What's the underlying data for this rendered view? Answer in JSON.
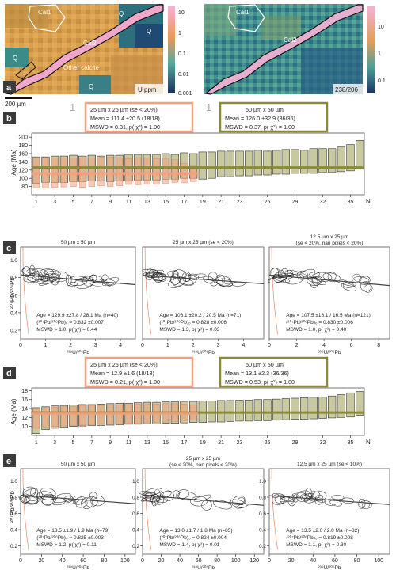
{
  "colors": {
    "salmon": "#f2a07e",
    "olive": "#8a8a3a",
    "bar_fill": "#c9c9a0",
    "panel_label_bg": "#3b3b3b",
    "map_pink": "#f1a7c9",
    "map_orange": "#d99a4a",
    "map_teal": "#2d7a82",
    "map_navy": "#1f3a6a"
  },
  "panel_a": {
    "label": "a",
    "map1": {
      "labels": [
        "Cal1",
        "Cal2",
        "Q",
        "Q",
        "Q",
        "Q",
        "Other calcite"
      ],
      "unit": "U ppm",
      "colorbar_ticks": [
        "10",
        "1",
        "0.1",
        "0.01",
        "0.001"
      ]
    },
    "map2": {
      "labels": [
        "Cal1",
        "Cal2"
      ],
      "unit": "238/206",
      "colorbar_ticks": [
        "10",
        "1",
        "0.1"
      ]
    },
    "scalebar": "200 µm"
  },
  "panel_b": {
    "label": "b",
    "ylabel": "Age (Ma)",
    "xlabel": "N",
    "y_ticks": [
      "80",
      "100",
      "120",
      "140",
      "160",
      "180",
      "200"
    ],
    "x_ticks": [
      "1",
      "3",
      "5",
      "7",
      "9",
      "11",
      "13",
      "15",
      "17",
      "19",
      "21",
      "23",
      "26",
      "29",
      "32",
      "35"
    ],
    "marker1": "1",
    "marker2": "1",
    "box1": {
      "title": "25 µm x 25 µm  (se < 20%)",
      "line1": "Mean = 111.4  ±20.5 (18/18)",
      "line2": "MSWD = 0.31, p(  χ²) = 1.00"
    },
    "box2": {
      "title": "50 µm x 50 µm",
      "line1": "Mean = 126.0  ±32.9 (36/36)",
      "line2": "MSWD = 0.37, p(  χ²) = 1.00"
    }
  },
  "panel_c": {
    "label": "c",
    "ylabel": "²⁰⁷Pb/²⁰⁶Pb",
    "plots": [
      {
        "title": "50 µm x 50 µm",
        "title2": "",
        "xlabel": "²³⁸U/²⁰⁶Pb",
        "x_ticks": [
          "0",
          "1",
          "2",
          "3",
          "4"
        ],
        "y_ticks": [
          "0.2",
          "0.4",
          "0.6",
          "0.8",
          "1.0"
        ],
        "s1": "Age = 129.9  ±27.8 / 28.1 Ma (n=40)",
        "s2": "(²⁰⁷Pb/²⁰⁶Pb)₀ = 0.832 ±0.007",
        "s3": "MSWD = 1.0, p(  χ²) = 0.44"
      },
      {
        "title": "25 µm x 25 µm (se < 20%)",
        "title2": "",
        "xlabel": "²³⁸U/²⁰⁶Pb",
        "x_ticks": [
          "0",
          "1",
          "2",
          "3",
          "4"
        ],
        "y_ticks": [],
        "s1": "Age = 106.1  ±20.2 / 20.5 Ma (n=71)",
        "s2": "(²⁰⁷Pb/²⁰⁶Pb)₀ = 0.828 ±0.006",
        "s3": "MSWD = 1.3, p(  χ²) = 0.03"
      },
      {
        "title": "12.5 µm x 25 µm",
        "title2": "(se < 20%, nan pixels < 20%)",
        "xlabel": "²³⁸U/²⁰⁶Pb",
        "x_ticks": [
          "0",
          "2",
          "4",
          "6",
          "8"
        ],
        "y_ticks": [],
        "s1": "Age = 107.5  ±16.1 / 16.5 Ma (n=121)",
        "s2": "(²⁰⁷Pb/²⁰⁶Pb)₀ = 0.830 ±0.006",
        "s3": "MSWD = 1.0, p(  χ²) = 0.40"
      }
    ]
  },
  "panel_d": {
    "label": "d",
    "ylabel": "Age (Ma)",
    "xlabel": "N",
    "y_ticks": [
      "10",
      "12",
      "14",
      "16",
      "18"
    ],
    "x_ticks": [
      "1",
      "3",
      "5",
      "7",
      "9",
      "11",
      "13",
      "15",
      "17",
      "19",
      "21",
      "23",
      "26",
      "29",
      "32",
      "35"
    ],
    "box1": {
      "title": "25 µm x 25 µm  (se < 20%)",
      "line1": "Mean = 12.9  ±1.6 (18/18)",
      "line2": "MSWD = 0.21, p(  χ²) = 1.00"
    },
    "box2": {
      "title": "50 µm x 50 µm",
      "line1": "Mean = 13.1  ±2.3 (36/36)",
      "line2": "MSWD = 0.53, p(  χ²) = 1.00"
    }
  },
  "panel_e": {
    "label": "e",
    "ylabel": "²⁰⁷Pb/²⁰⁶Pb",
    "plots": [
      {
        "title": "50 µm x 50 µm",
        "title2": "",
        "xlabel": "²³⁸U/²⁰⁶Pb",
        "x_ticks": [
          "0",
          "20",
          "40",
          "60",
          "80",
          "100"
        ],
        "y_ticks": [
          "0.2",
          "0.4",
          "0.6",
          "0.8",
          "1.0"
        ],
        "s1": "Age = 13.5  ±1.9 / 1.9 Ma (n=79)",
        "s2": "(²⁰⁷Pb/²⁰⁶Pb)₀ = 0.825 ±0.003",
        "s3": "MSWD = 1.2, p(  χ²) = 0.11"
      },
      {
        "title": "25 µm x 25 µm",
        "title2": "(se < 20%, nan pixels < 20%)",
        "xlabel": "²³⁸U/²⁰⁶Pb",
        "x_ticks": [
          "0",
          "20",
          "40",
          "60",
          "80",
          "100",
          "120"
        ],
        "y_ticks": [
          "0.2",
          "0.4",
          "0.6",
          "0.8",
          "1.0"
        ],
        "s1": "Age = 13.0  ±1.7 / 1.8 Ma (n=85)",
        "s2": "(²⁰⁷Pb/²⁰⁶Pb)₀ = 0.824 ±0.004",
        "s3": "MSWD = 1.4, p(  χ²) = 0.01"
      },
      {
        "title": "12.5 µm x 25 µm (se < 10%)",
        "title2": "",
        "xlabel": "²³⁸U/²⁰⁶Pb",
        "x_ticks": [
          "0",
          "20",
          "40",
          "60",
          "80",
          "100"
        ],
        "y_ticks": [
          "0.2",
          "0.4",
          "0.6",
          "0.8",
          "1.0"
        ],
        "s1": "Age = 13.5  ±2.0 / 2.0 Ma (n=32)",
        "s2": "(²⁰⁷Pb/²⁰⁶Pb)₀ = 0.819 ±0.008",
        "s3": "MSWD = 1.1, p(  χ²) = 0.30"
      }
    ]
  },
  "chart_data": [
    {
      "type": "bar",
      "id": "b",
      "ylabel": "Age (Ma)",
      "xlabel": "N",
      "ylim": [
        60,
        210
      ],
      "series": [
        {
          "name": "25 µm x 25 µm  (se < 20%)",
          "mean": 111.4,
          "lows": [
            77,
            76,
            78,
            79,
            80,
            78,
            80,
            82,
            80,
            82,
            85,
            84,
            86,
            86,
            88,
            90,
            89,
            92
          ],
          "highs": [
            150,
            151,
            150,
            149,
            149,
            150,
            150,
            151,
            152,
            150,
            148,
            150,
            149,
            148,
            147,
            145,
            136,
            131
          ]
        },
        {
          "name": "50 µm x 50 µm",
          "mean": 126.0,
          "lows": [
            88,
            90,
            90,
            90,
            92,
            92,
            94,
            94,
            92,
            94,
            94,
            96,
            96,
            96,
            98,
            98,
            100,
            100,
            98,
            100,
            104,
            104,
            106,
            106,
            108,
            108,
            110,
            110,
            112,
            112,
            112,
            114,
            114,
            116,
            118,
            122
          ],
          "highs": [
            152,
            152,
            154,
            154,
            156,
            154,
            156,
            154,
            156,
            156,
            158,
            158,
            158,
            158,
            160,
            158,
            162,
            160,
            164,
            164,
            166,
            166,
            166,
            166,
            168,
            166,
            168,
            170,
            170,
            168,
            172,
            172,
            172,
            176,
            182,
            192
          ]
        }
      ]
    },
    {
      "type": "scatter",
      "id": "c",
      "plots": [
        {
          "name": "50 µm x 50 µm",
          "xlim": [
            0,
            4.6
          ],
          "ylim": [
            0.1,
            1.15
          ],
          "line": [
            [
              0,
              0.832
            ],
            [
              4.6,
              0.72
            ]
          ]
        },
        {
          "name": "25 µm x 25 µm (se < 20%)",
          "xlim": [
            0,
            4.8
          ],
          "ylim": [
            0.1,
            1.15
          ],
          "line": [
            [
              0,
              0.828
            ],
            [
              4.8,
              0.73
            ]
          ]
        },
        {
          "name": "12.5 µm x 25 µm",
          "xlim": [
            0,
            8.8
          ],
          "ylim": [
            0.1,
            1.15
          ],
          "line": [
            [
              0,
              0.83
            ],
            [
              8.8,
              0.71
            ]
          ]
        }
      ]
    },
    {
      "type": "bar",
      "id": "d",
      "ylabel": "Age (Ma)",
      "xlabel": "N",
      "ylim": [
        8,
        18.6
      ],
      "series": [
        {
          "name": "25 µm x 25 µm  (se < 20%)",
          "mean": 12.9,
          "lows": [
            9.6,
            9.9,
            10.0,
            10.1,
            10.2,
            10.3,
            10.3,
            10.5,
            10.5,
            10.6,
            10.7,
            10.7,
            10.8,
            10.9,
            11.0,
            11.1,
            11.3,
            11.5
          ],
          "highs": [
            14.0,
            14.2,
            14.3,
            14.4,
            14.5,
            14.6,
            14.7,
            14.7,
            14.8,
            14.8,
            14.9,
            15.0,
            15.0,
            15.0,
            15.1,
            15.1,
            15.0,
            14.8
          ]
        },
        {
          "name": "50 µm x 50 µm",
          "mean": 13.1,
          "lows": [
            8.4,
            9.3,
            9.6,
            9.8,
            10.0,
            10.1,
            10.2,
            10.2,
            10.3,
            10.4,
            10.5,
            10.5,
            10.6,
            10.6,
            10.7,
            10.7,
            10.8,
            10.9,
            10.9,
            11.0,
            11.0,
            11.1,
            11.2,
            11.2,
            11.3,
            11.3,
            11.4,
            11.5,
            11.6,
            11.6,
            11.7,
            11.8,
            11.9,
            12.0,
            12.1,
            12.5
          ],
          "highs": [
            14.2,
            14.4,
            14.6,
            14.7,
            14.8,
            14.9,
            14.9,
            15.0,
            15.1,
            15.2,
            15.2,
            15.3,
            15.4,
            15.4,
            15.5,
            15.5,
            15.6,
            15.6,
            15.7,
            15.7,
            15.8,
            15.8,
            15.9,
            15.9,
            16.0,
            16.0,
            16.1,
            16.2,
            16.3,
            16.4,
            16.5,
            16.6,
            16.8,
            17.1,
            17.5,
            17.8
          ]
        }
      ]
    },
    {
      "type": "scatter",
      "id": "e",
      "plots": [
        {
          "name": "50 µm x 50 µm",
          "xlim": [
            0,
            110
          ],
          "ylim": [
            0.1,
            1.15
          ],
          "line": [
            [
              0,
              0.825
            ],
            [
              110,
              0.72
            ]
          ]
        },
        {
          "name": "25 µm x 25 µm",
          "xlim": [
            0,
            130
          ],
          "ylim": [
            0.1,
            1.15
          ],
          "line": [
            [
              0,
              0.824
            ],
            [
              130,
              0.7
            ]
          ]
        },
        {
          "name": "12.5 µm x 25 µm (se < 10%)",
          "xlim": [
            0,
            110
          ],
          "ylim": [
            0.1,
            1.15
          ],
          "line": [
            [
              0,
              0.819
            ],
            [
              110,
              0.71
            ]
          ]
        }
      ]
    }
  ]
}
